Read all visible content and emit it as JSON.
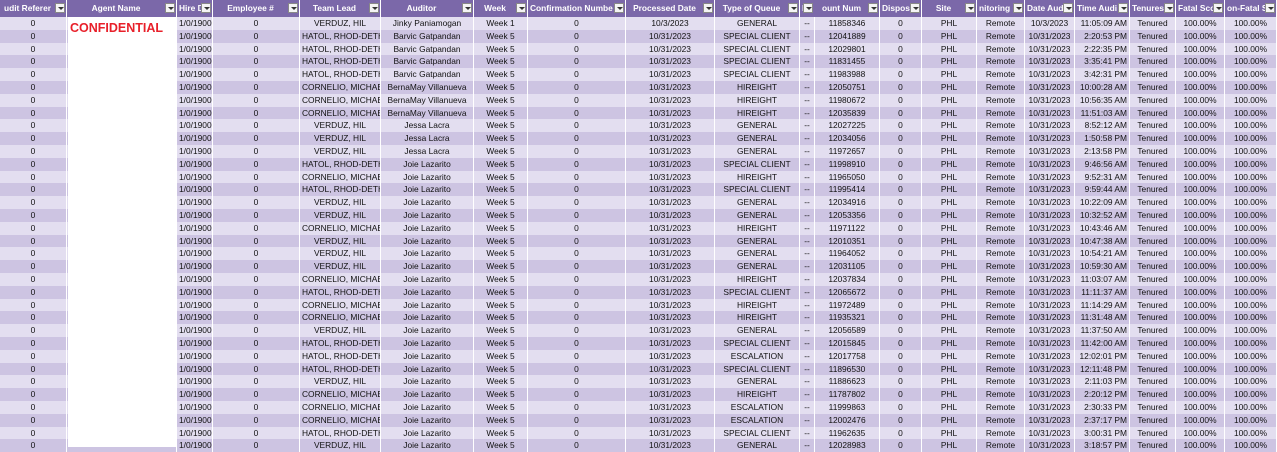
{
  "table": {
    "headers": [
      "udit Referer",
      "Agent Name",
      "Hire Da",
      "Employee #",
      "Team Lead",
      "Auditor",
      "Week",
      "Confirmation Numbe",
      "Processed Date",
      "Type of Queue",
      "D",
      "ount Num",
      "Dispositi",
      "Site",
      "nitoring N",
      "Date Audi",
      "Time Audi",
      "Tenures",
      "Fatal Sco",
      "on-Fatal S"
    ],
    "redaction_label": "CONFIDENTIAL",
    "rows": [
      [
        "0",
        "1/0/1900",
        "0",
        "VERDUZ, HIL",
        "Jinky Paniamogan",
        "Week 1",
        "0",
        "10/3/2023",
        "GENERAL",
        "--",
        "11858346",
        "0",
        "PHL",
        "Remote",
        "10/3/2023",
        "11:05:09 AM",
        "Tenured",
        "100.00%",
        "100.00%"
      ],
      [
        "0",
        "1/0/1900",
        "0",
        "HATOL, RHOD-DETH",
        "Barvic Gatpandan",
        "Week 5",
        "0",
        "10/31/2023",
        "SPECIAL CLIENT",
        "--",
        "12041889",
        "0",
        "PHL",
        "Remote",
        "10/31/2023",
        "2:20:53 PM",
        "Tenured",
        "100.00%",
        "100.00%"
      ],
      [
        "0",
        "1/0/1900",
        "0",
        "HATOL, RHOD-DETH",
        "Barvic Gatpandan",
        "Week 5",
        "0",
        "10/31/2023",
        "SPECIAL CLIENT",
        "--",
        "12029801",
        "0",
        "PHL",
        "Remote",
        "10/31/2023",
        "2:22:35 PM",
        "Tenured",
        "100.00%",
        "100.00%"
      ],
      [
        "0",
        "1/0/1900",
        "0",
        "HATOL, RHOD-DETH",
        "Barvic Gatpandan",
        "Week 5",
        "0",
        "10/31/2023",
        "SPECIAL CLIENT",
        "--",
        "11831455",
        "0",
        "PHL",
        "Remote",
        "10/31/2023",
        "3:35:41 PM",
        "Tenured",
        "100.00%",
        "100.00%"
      ],
      [
        "0",
        "1/0/1900",
        "0",
        "HATOL, RHOD-DETH",
        "Barvic Gatpandan",
        "Week 5",
        "0",
        "10/31/2023",
        "SPECIAL CLIENT",
        "--",
        "11983988",
        "0",
        "PHL",
        "Remote",
        "10/31/2023",
        "3:42:31 PM",
        "Tenured",
        "100.00%",
        "100.00%"
      ],
      [
        "0",
        "1/0/1900",
        "0",
        "CORNELIO, MICHAEL",
        "BernaMay Villanueva",
        "Week 5",
        "0",
        "10/31/2023",
        "HIREIGHT",
        "--",
        "12050751",
        "0",
        "PHL",
        "Remote",
        "10/31/2023",
        "10:00:28 AM",
        "Tenured",
        "100.00%",
        "100.00%"
      ],
      [
        "0",
        "1/0/1900",
        "0",
        "CORNELIO, MICHAEL",
        "BernaMay Villanueva",
        "Week 5",
        "0",
        "10/31/2023",
        "HIREIGHT",
        "--",
        "11980672",
        "0",
        "PHL",
        "Remote",
        "10/31/2023",
        "10:56:35 AM",
        "Tenured",
        "100.00%",
        "100.00%"
      ],
      [
        "0",
        "1/0/1900",
        "0",
        "CORNELIO, MICHAEL",
        "BernaMay Villanueva",
        "Week 5",
        "0",
        "10/31/2023",
        "HIREIGHT",
        "--",
        "12035839",
        "0",
        "PHL",
        "Remote",
        "10/31/2023",
        "11:51:03 AM",
        "Tenured",
        "100.00%",
        "100.00%"
      ],
      [
        "0",
        "1/0/1900",
        "0",
        "VERDUZ, HIL",
        "Jessa Lacra",
        "Week 5",
        "0",
        "10/31/2023",
        "GENERAL",
        "--",
        "12027225",
        "0",
        "PHL",
        "Remote",
        "10/31/2023",
        "8:52:12 AM",
        "Tenured",
        "100.00%",
        "100.00%"
      ],
      [
        "0",
        "1/0/1900",
        "0",
        "VERDUZ, HIL",
        "Jessa Lacra",
        "Week 5",
        "0",
        "10/31/2023",
        "GENERAL",
        "--",
        "12034056",
        "0",
        "PHL",
        "Remote",
        "10/31/2023",
        "1:50:58 PM",
        "Tenured",
        "100.00%",
        "100.00%"
      ],
      [
        "0",
        "1/0/1900",
        "0",
        "VERDUZ, HIL",
        "Jessa Lacra",
        "Week 5",
        "0",
        "10/31/2023",
        "GENERAL",
        "--",
        "11972657",
        "0",
        "PHL",
        "Remote",
        "10/31/2023",
        "2:13:58 PM",
        "Tenured",
        "100.00%",
        "100.00%"
      ],
      [
        "0",
        "1/0/1900",
        "0",
        "HATOL, RHOD-DETH",
        "Joie Lazarito",
        "Week 5",
        "0",
        "10/31/2023",
        "SPECIAL CLIENT",
        "--",
        "11998910",
        "0",
        "PHL",
        "Remote",
        "10/31/2023",
        "9:46:56 AM",
        "Tenured",
        "100.00%",
        "100.00%"
      ],
      [
        "0",
        "1/0/1900",
        "0",
        "CORNELIO, MICHAEL",
        "Joie Lazarito",
        "Week 5",
        "0",
        "10/31/2023",
        "HIREIGHT",
        "--",
        "11965050",
        "0",
        "PHL",
        "Remote",
        "10/31/2023",
        "9:52:31 AM",
        "Tenured",
        "100.00%",
        "100.00%"
      ],
      [
        "0",
        "1/0/1900",
        "0",
        "HATOL, RHOD-DETH",
        "Joie Lazarito",
        "Week 5",
        "0",
        "10/31/2023",
        "SPECIAL CLIENT",
        "--",
        "11995414",
        "0",
        "PHL",
        "Remote",
        "10/31/2023",
        "9:59:44 AM",
        "Tenured",
        "100.00%",
        "100.00%"
      ],
      [
        "0",
        "1/0/1900",
        "0",
        "VERDUZ, HIL",
        "Joie Lazarito",
        "Week 5",
        "0",
        "10/31/2023",
        "GENERAL",
        "--",
        "12034916",
        "0",
        "PHL",
        "Remote",
        "10/31/2023",
        "10:22:09 AM",
        "Tenured",
        "100.00%",
        "100.00%"
      ],
      [
        "0",
        "1/0/1900",
        "0",
        "VERDUZ, HIL",
        "Joie Lazarito",
        "Week 5",
        "0",
        "10/31/2023",
        "GENERAL",
        "--",
        "12053356",
        "0",
        "PHL",
        "Remote",
        "10/31/2023",
        "10:32:52 AM",
        "Tenured",
        "100.00%",
        "100.00%"
      ],
      [
        "0",
        "1/0/1900",
        "0",
        "CORNELIO, MICHAEL",
        "Joie Lazarito",
        "Week 5",
        "0",
        "10/31/2023",
        "HIREIGHT",
        "--",
        "11971122",
        "0",
        "PHL",
        "Remote",
        "10/31/2023",
        "10:43:46 AM",
        "Tenured",
        "100.00%",
        "100.00%"
      ],
      [
        "0",
        "1/0/1900",
        "0",
        "VERDUZ, HIL",
        "Joie Lazarito",
        "Week 5",
        "0",
        "10/31/2023",
        "GENERAL",
        "--",
        "12010351",
        "0",
        "PHL",
        "Remote",
        "10/31/2023",
        "10:47:38 AM",
        "Tenured",
        "100.00%",
        "100.00%"
      ],
      [
        "0",
        "1/0/1900",
        "0",
        "VERDUZ, HIL",
        "Joie Lazarito",
        "Week 5",
        "0",
        "10/31/2023",
        "GENERAL",
        "--",
        "11964052",
        "0",
        "PHL",
        "Remote",
        "10/31/2023",
        "10:54:21 AM",
        "Tenured",
        "100.00%",
        "100.00%"
      ],
      [
        "0",
        "1/0/1900",
        "0",
        "VERDUZ, HIL",
        "Joie Lazarito",
        "Week 5",
        "0",
        "10/31/2023",
        "GENERAL",
        "--",
        "12031105",
        "0",
        "PHL",
        "Remote",
        "10/31/2023",
        "10:59:30 AM",
        "Tenured",
        "100.00%",
        "100.00%"
      ],
      [
        "0",
        "1/0/1900",
        "0",
        "CORNELIO, MICHAEL",
        "Joie Lazarito",
        "Week 5",
        "0",
        "10/31/2023",
        "HIREIGHT",
        "--",
        "12037834",
        "0",
        "PHL",
        "Remote",
        "10/31/2023",
        "11:03:07 AM",
        "Tenured",
        "100.00%",
        "100.00%"
      ],
      [
        "0",
        "1/0/1900",
        "0",
        "HATOL, RHOD-DETH",
        "Joie Lazarito",
        "Week 5",
        "0",
        "10/31/2023",
        "SPECIAL CLIENT",
        "--",
        "12065672",
        "0",
        "PHL",
        "Remote",
        "10/31/2023",
        "11:11:37 AM",
        "Tenured",
        "100.00%",
        "100.00%"
      ],
      [
        "0",
        "1/0/1900",
        "0",
        "CORNELIO, MICHAEL",
        "Joie Lazarito",
        "Week 5",
        "0",
        "10/31/2023",
        "HIREIGHT",
        "--",
        "11972489",
        "0",
        "PHL",
        "Remote",
        "10/31/2023",
        "11:14:29 AM",
        "Tenured",
        "100.00%",
        "100.00%"
      ],
      [
        "0",
        "1/0/1900",
        "0",
        "CORNELIO, MICHAEL",
        "Joie Lazarito",
        "Week 5",
        "0",
        "10/31/2023",
        "HIREIGHT",
        "--",
        "11935321",
        "0",
        "PHL",
        "Remote",
        "10/31/2023",
        "11:31:48 AM",
        "Tenured",
        "100.00%",
        "100.00%"
      ],
      [
        "0",
        "1/0/1900",
        "0",
        "VERDUZ, HIL",
        "Joie Lazarito",
        "Week 5",
        "0",
        "10/31/2023",
        "GENERAL",
        "--",
        "12056589",
        "0",
        "PHL",
        "Remote",
        "10/31/2023",
        "11:37:50 AM",
        "Tenured",
        "100.00%",
        "100.00%"
      ],
      [
        "0",
        "1/0/1900",
        "0",
        "HATOL, RHOD-DETH",
        "Joie Lazarito",
        "Week 5",
        "0",
        "10/31/2023",
        "SPECIAL CLIENT",
        "--",
        "12015845",
        "0",
        "PHL",
        "Remote",
        "10/31/2023",
        "11:42:00 AM",
        "Tenured",
        "100.00%",
        "100.00%"
      ],
      [
        "0",
        "1/0/1900",
        "0",
        "HATOL, RHOD-DETH",
        "Joie Lazarito",
        "Week 5",
        "0",
        "10/31/2023",
        "ESCALATION",
        "--",
        "12017758",
        "0",
        "PHL",
        "Remote",
        "10/31/2023",
        "12:02:01 PM",
        "Tenured",
        "100.00%",
        "100.00%"
      ],
      [
        "0",
        "1/0/1900",
        "0",
        "HATOL, RHOD-DETH",
        "Joie Lazarito",
        "Week 5",
        "0",
        "10/31/2023",
        "SPECIAL CLIENT",
        "--",
        "11896530",
        "0",
        "PHL",
        "Remote",
        "10/31/2023",
        "12:11:48 PM",
        "Tenured",
        "100.00%",
        "100.00%"
      ],
      [
        "0",
        "1/0/1900",
        "0",
        "VERDUZ, HIL",
        "Joie Lazarito",
        "Week 5",
        "0",
        "10/31/2023",
        "GENERAL",
        "--",
        "11886623",
        "0",
        "PHL",
        "Remote",
        "10/31/2023",
        "2:11:03 PM",
        "Tenured",
        "100.00%",
        "100.00%"
      ],
      [
        "0",
        "1/0/1900",
        "0",
        "CORNELIO, MICHAEL",
        "Joie Lazarito",
        "Week 5",
        "0",
        "10/31/2023",
        "HIREIGHT",
        "--",
        "11787802",
        "0",
        "PHL",
        "Remote",
        "10/31/2023",
        "2:20:12 PM",
        "Tenured",
        "100.00%",
        "100.00%"
      ],
      [
        "0",
        "1/0/1900",
        "0",
        "CORNELIO, MICHAEL",
        "Joie Lazarito",
        "Week 5",
        "0",
        "10/31/2023",
        "ESCALATION",
        "--",
        "11999863",
        "0",
        "PHL",
        "Remote",
        "10/31/2023",
        "2:30:33 PM",
        "Tenured",
        "100.00%",
        "100.00%"
      ],
      [
        "0",
        "1/0/1900",
        "0",
        "CORNELIO, MICHAEL",
        "Joie Lazarito",
        "Week 5",
        "0",
        "10/31/2023",
        "ESCALATION",
        "--",
        "12002476",
        "0",
        "PHL",
        "Remote",
        "10/31/2023",
        "2:37:17 PM",
        "Tenured",
        "100.00%",
        "100.00%"
      ],
      [
        "0",
        "1/0/1900",
        "0",
        "HATOL, RHOD-DETH",
        "Joie Lazarito",
        "Week 5",
        "0",
        "10/31/2023",
        "SPECIAL CLIENT",
        "--",
        "11962635",
        "0",
        "PHL",
        "Remote",
        "10/31/2023",
        "3:00:31 PM",
        "Tenured",
        "100.00%",
        "100.00%"
      ],
      [
        "0",
        "1/0/1900",
        "0",
        "VERDUZ, HIL",
        "Joie Lazarito",
        "Week 5",
        "0",
        "10/31/2023",
        "GENERAL",
        "--",
        "12028983",
        "0",
        "PHL",
        "Remote",
        "10/31/2023",
        "3:18:57 PM",
        "Tenured",
        "100.00%",
        "100.00%"
      ]
    ]
  }
}
